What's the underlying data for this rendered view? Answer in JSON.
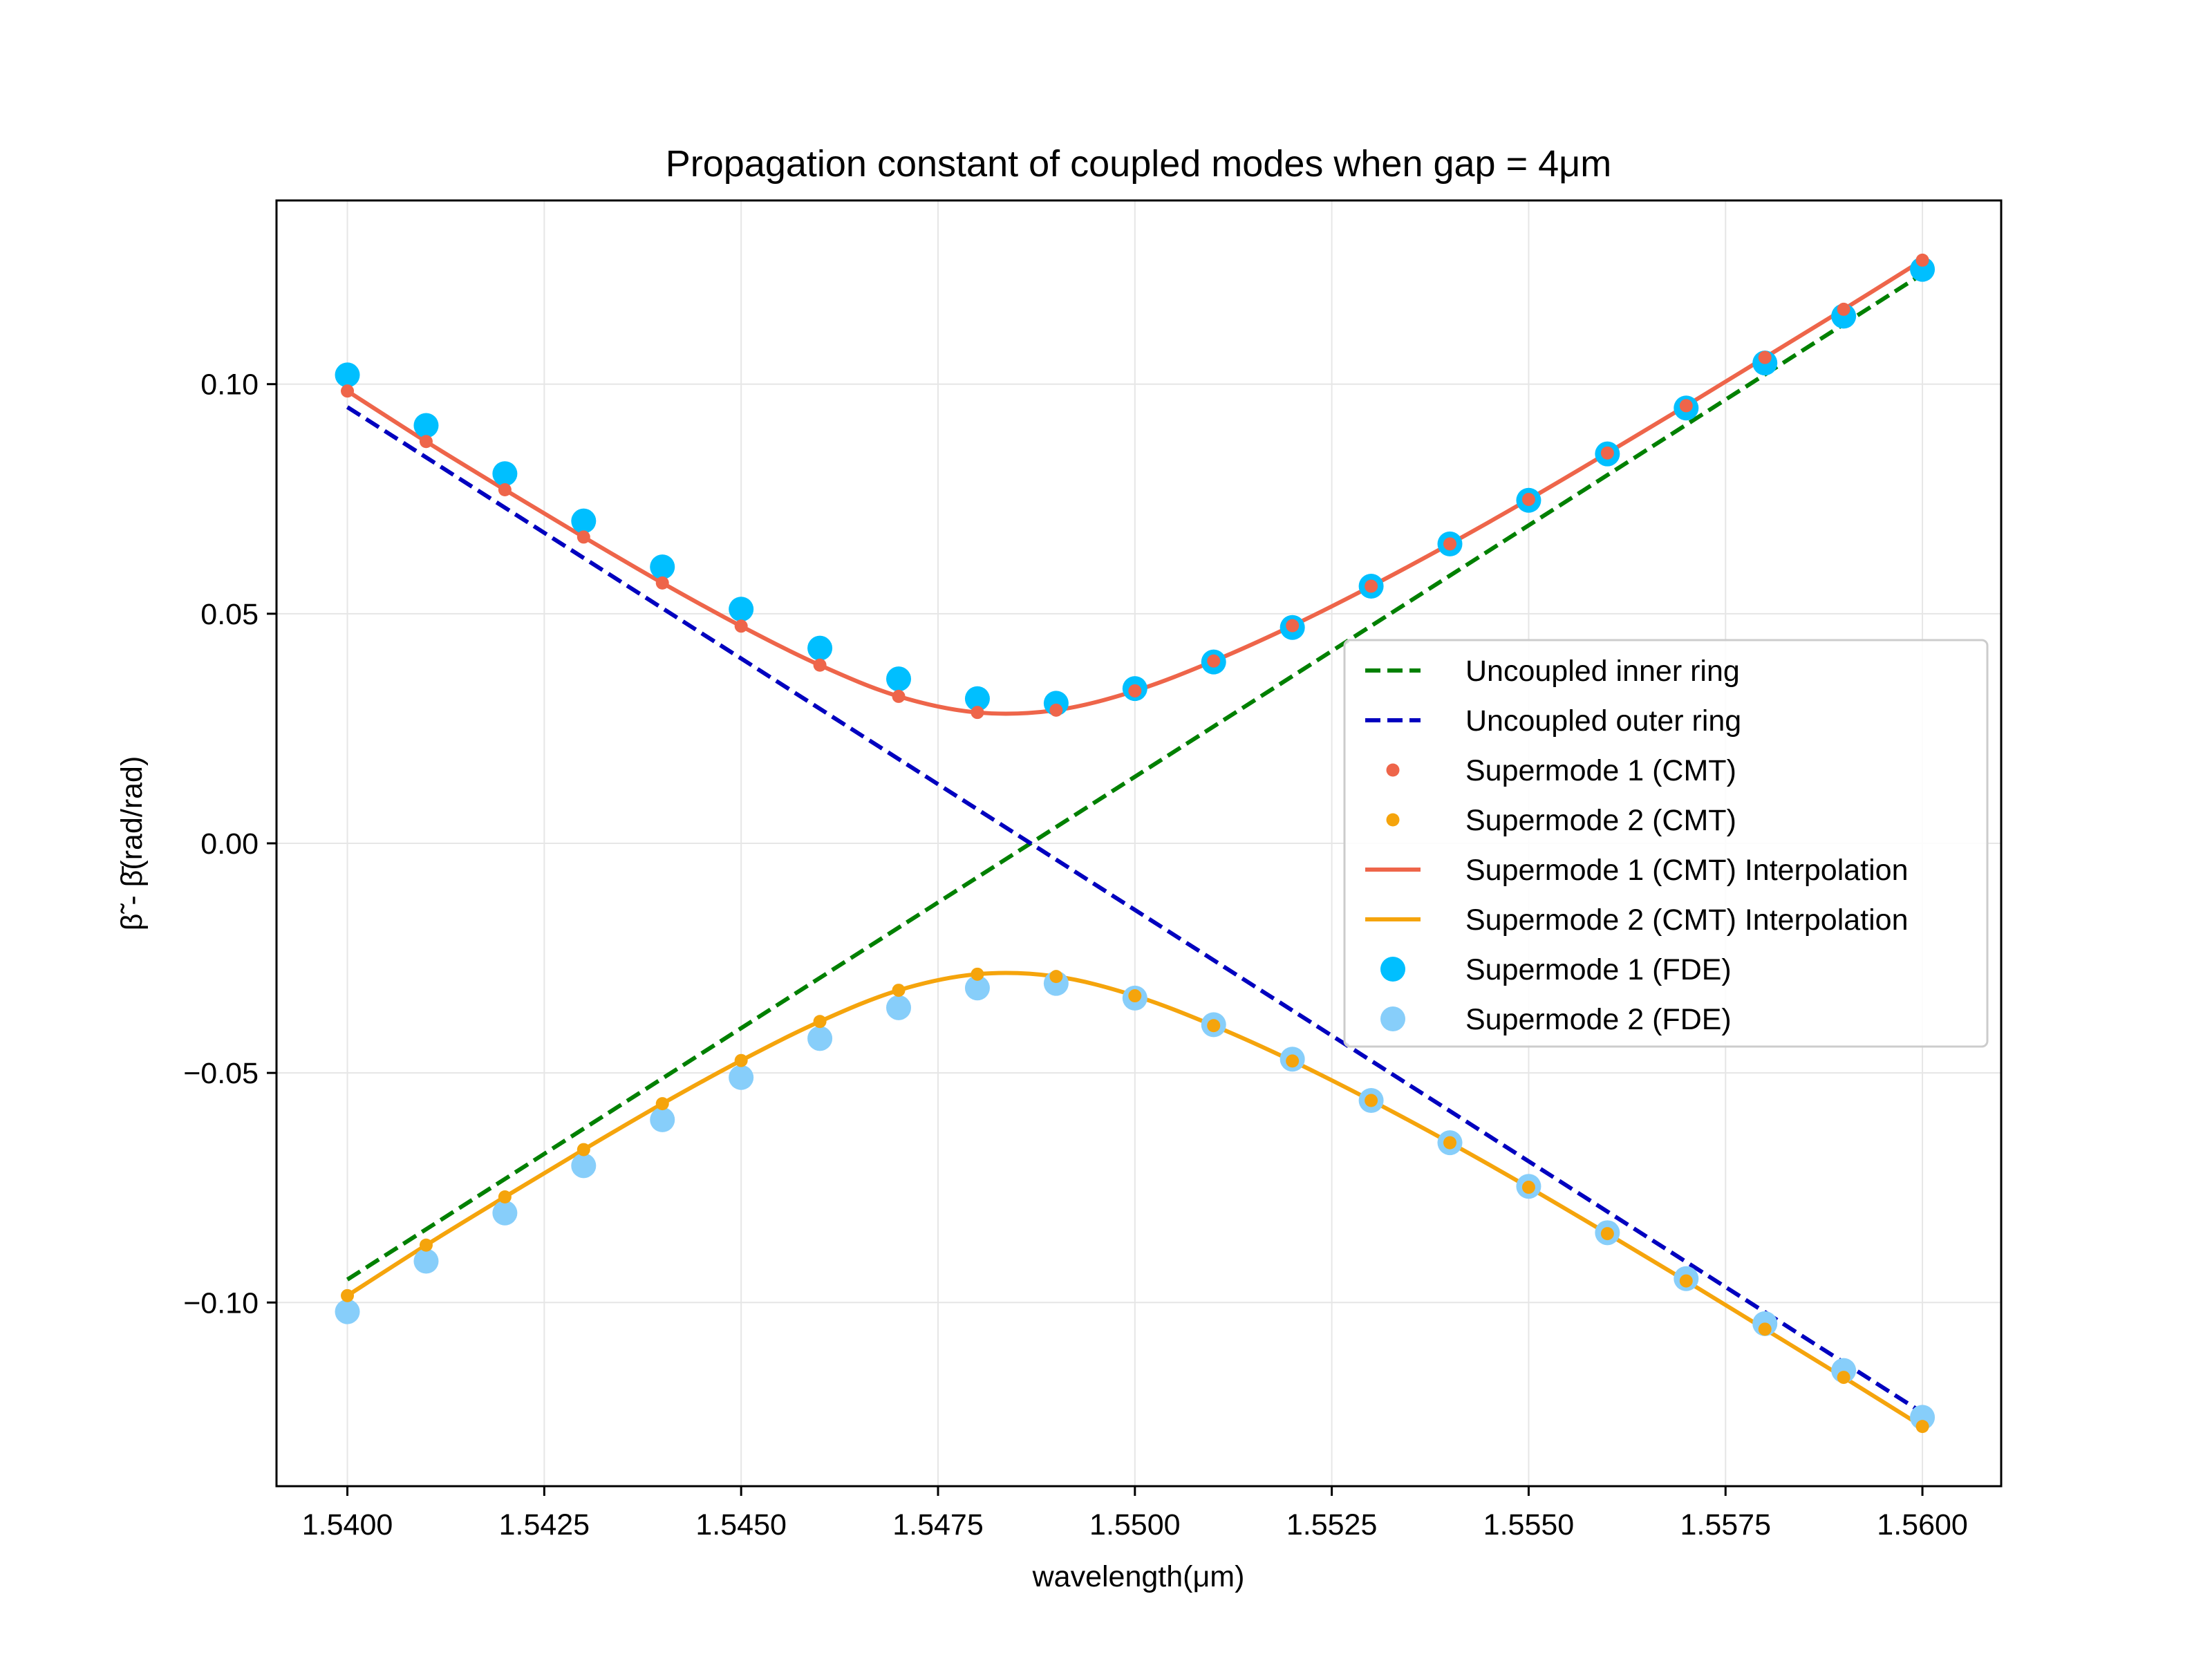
{
  "chart_data": {
    "type": "line",
    "title": "Propagation constant of coupled modes when gap = 4μm",
    "xlabel": "wavelength(μm)",
    "ylabel": "β̃ - β̄(rad/rad)",
    "xlim": [
      1.5391,
      1.561
    ],
    "ylim": [
      -0.14,
      0.14
    ],
    "x_ticks": [
      1.54,
      1.5425,
      1.545,
      1.5475,
      1.55,
      1.5525,
      1.555,
      1.5575,
      1.56
    ],
    "x_tick_labels": [
      "1.5400",
      "1.5425",
      "1.5450",
      "1.5475",
      "1.5500",
      "1.5525",
      "1.5550",
      "1.5575",
      "1.5600"
    ],
    "y_ticks": [
      -0.1,
      -0.05,
      0.0,
      0.05,
      0.1
    ],
    "y_tick_labels": [
      "−0.10",
      "−0.05",
      "0.00",
      "0.05",
      "0.10"
    ],
    "grid": true,
    "legend_position": "center-right",
    "x": [
      1.54,
      1.541,
      1.542,
      1.543,
      1.544,
      1.545,
      1.546,
      1.547,
      1.548,
      1.549,
      1.55,
      1.551,
      1.552,
      1.553,
      1.554,
      1.555,
      1.556,
      1.557,
      1.558,
      1.559,
      1.56
    ],
    "series": [
      {
        "name": "Uncoupled inner ring",
        "kind": "dashed-line",
        "color": "#008000",
        "x": [
          1.54,
          1.56
        ],
        "values": [
          -0.095,
          0.124
        ]
      },
      {
        "name": "Uncoupled outer ring",
        "kind": "dashed-line",
        "color": "#0000bf",
        "x": [
          1.54,
          1.56
        ],
        "values": [
          0.095,
          -0.124
        ]
      },
      {
        "name": "Supermode 1 (CMT)",
        "kind": "small-dots",
        "color": "#ee654a",
        "values": [
          0.0985,
          0.0875,
          0.077,
          0.0667,
          0.0567,
          0.0473,
          0.0388,
          0.032,
          0.0285,
          0.029,
          0.0332,
          0.0397,
          0.0474,
          0.056,
          0.0652,
          0.0749,
          0.085,
          0.0953,
          0.1058,
          0.1163,
          0.127
        ]
      },
      {
        "name": "Supermode 2 (CMT)",
        "kind": "small-dots",
        "color": "#f5a40c",
        "values": [
          -0.0985,
          -0.0875,
          -0.077,
          -0.0667,
          -0.0567,
          -0.0473,
          -0.0388,
          -0.032,
          -0.0285,
          -0.029,
          -0.0332,
          -0.0397,
          -0.0474,
          -0.056,
          -0.0652,
          -0.0749,
          -0.085,
          -0.0953,
          -0.1058,
          -0.1163,
          -0.127
        ]
      },
      {
        "name": "Supermode 1 (CMT) Interpolation",
        "kind": "line",
        "color": "#ee654a",
        "values": [
          0.0985,
          0.0875,
          0.077,
          0.0667,
          0.0567,
          0.0473,
          0.0388,
          0.032,
          0.0285,
          0.029,
          0.0332,
          0.0397,
          0.0474,
          0.056,
          0.0652,
          0.0749,
          0.085,
          0.0953,
          0.1058,
          0.1163,
          0.127
        ]
      },
      {
        "name": "Supermode 2 (CMT) Interpolation",
        "kind": "line",
        "color": "#f5a40c",
        "values": [
          -0.0985,
          -0.0875,
          -0.077,
          -0.0667,
          -0.0567,
          -0.0473,
          -0.0388,
          -0.032,
          -0.0285,
          -0.029,
          -0.0332,
          -0.0397,
          -0.0474,
          -0.056,
          -0.0652,
          -0.0749,
          -0.085,
          -0.0953,
          -0.1058,
          -0.1163,
          -0.127
        ]
      },
      {
        "name": "Supermode 1 (FDE)",
        "kind": "large-dots",
        "color": "#00bfff",
        "values": [
          0.102,
          0.091,
          0.0805,
          0.0702,
          0.0602,
          0.051,
          0.0425,
          0.0358,
          0.0315,
          0.0305,
          0.0337,
          0.0395,
          0.047,
          0.056,
          0.0652,
          0.0747,
          0.0848,
          0.0948,
          0.1046,
          0.1148,
          0.125
        ]
      },
      {
        "name": "Supermode 2 (FDE)",
        "kind": "large-dots",
        "color": "#87cefa",
        "values": [
          -0.102,
          -0.091,
          -0.0805,
          -0.0702,
          -0.0602,
          -0.051,
          -0.0425,
          -0.0358,
          -0.0315,
          -0.0305,
          -0.0337,
          -0.0395,
          -0.047,
          -0.056,
          -0.0652,
          -0.0747,
          -0.0848,
          -0.0948,
          -0.1046,
          -0.1148,
          -0.125
        ]
      }
    ]
  }
}
